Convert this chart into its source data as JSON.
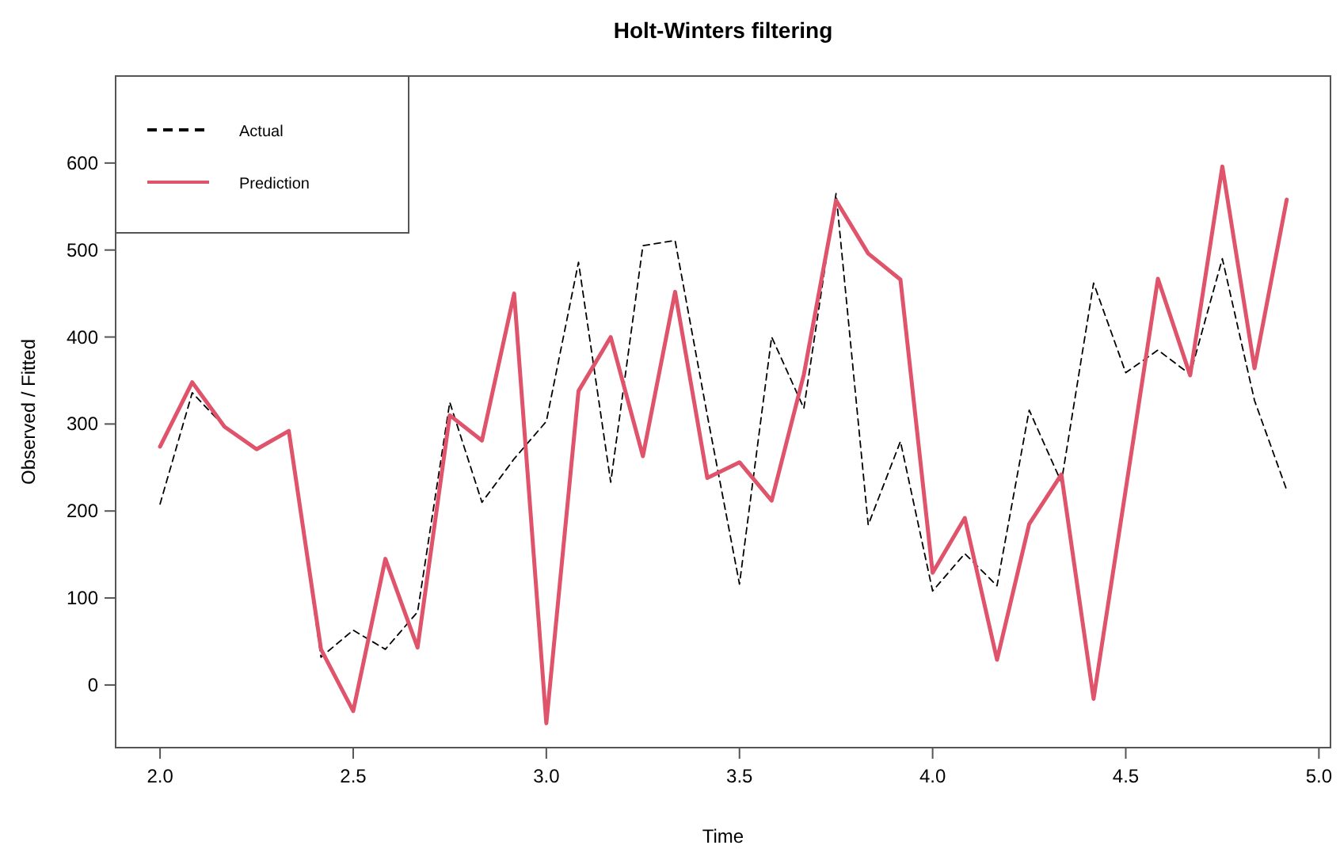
{
  "chart_data": {
    "type": "line",
    "title": "Holt-Winters filtering",
    "xlabel": "Time",
    "ylabel": "Observed / Fitted",
    "xlim": [
      1.885,
      5.03
    ],
    "ylim": [
      -72,
      700
    ],
    "xticks": [
      {
        "value": 2,
        "label": "2.0"
      },
      {
        "value": 2.5,
        "label": "2.5"
      },
      {
        "value": 3,
        "label": "3.0"
      },
      {
        "value": 3.5,
        "label": "3.5"
      },
      {
        "value": 4,
        "label": "4.0"
      },
      {
        "value": 4.5,
        "label": "4.5"
      },
      {
        "value": 5,
        "label": "5.0"
      }
    ],
    "yticks": [
      0,
      100,
      200,
      300,
      400,
      500,
      600
    ],
    "grid": false,
    "legend": "top left",
    "marker": "none",
    "series": [
      {
        "name": "Actual",
        "color": "#000000",
        "line_style": "dashed",
        "x": [
          2,
          2.0833,
          2.1667,
          2.25,
          2.3333,
          2.4167,
          2.5,
          2.5833,
          2.6667,
          2.75,
          2.8333,
          2.9167,
          3,
          3.0833,
          3.1667,
          3.25,
          3.3333,
          3.4167,
          3.5,
          3.5833,
          3.6667,
          3.75,
          3.8333,
          3.9167,
          4,
          4.0833,
          4.1667,
          4.25,
          4.3333,
          4.4167,
          4.5,
          4.5833,
          4.6667,
          4.75,
          4.8333,
          4.9167
        ],
        "values": [
          208,
          336,
          297,
          271,
          292,
          32,
          63,
          41,
          84,
          325,
          210,
          260,
          303,
          486,
          233,
          505,
          511,
          310,
          116,
          400,
          318,
          565,
          184,
          280,
          108,
          151,
          114,
          316,
          233,
          462,
          359,
          385,
          357,
          490,
          327,
          224
        ]
      },
      {
        "name": "Prediction",
        "color": "#df536b",
        "line_style": "solid",
        "x": [
          2,
          2.0833,
          2.1667,
          2.25,
          2.3333,
          2.4167,
          2.5,
          2.5833,
          2.6667,
          2.75,
          2.8333,
          2.9167,
          3,
          3.0833,
          3.1667,
          3.25,
          3.3333,
          3.4167,
          3.5,
          3.5833,
          3.6667,
          3.75,
          3.8333,
          3.9167,
          4,
          4.0833,
          4.1667,
          4.25,
          4.3333,
          4.4167,
          4.5,
          4.5833,
          4.6667,
          4.75,
          4.8333,
          4.9167
        ],
        "values": [
          274,
          348,
          297,
          271,
          292,
          41,
          -30,
          145,
          43,
          310,
          281,
          450,
          -44,
          338,
          400,
          263,
          452,
          238,
          256,
          212,
          357,
          557,
          496,
          466,
          129,
          192,
          29,
          185,
          242,
          -16,
          225,
          467,
          356,
          596,
          364,
          558
        ]
      }
    ]
  }
}
